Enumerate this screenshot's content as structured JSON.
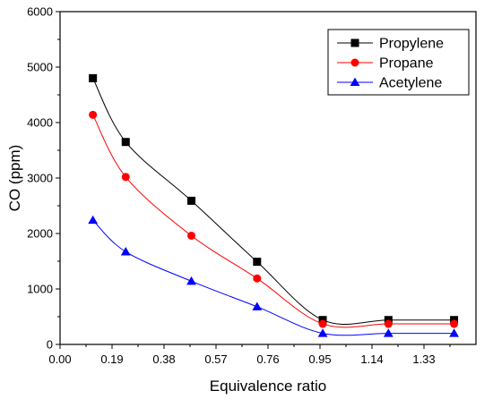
{
  "chart_data": {
    "type": "line",
    "title": "",
    "xlabel": "Equivalence ratio",
    "ylabel": "CO (ppm)",
    "xlim": [
      0.0,
      1.52
    ],
    "ylim": [
      0,
      6000
    ],
    "xticks": [
      0.0,
      0.19,
      0.38,
      0.57,
      0.76,
      0.95,
      1.14,
      1.33
    ],
    "xtick_labels": [
      "0.00",
      "0.19",
      "0.38",
      "0.57",
      "0.76",
      "0.95",
      "1.14",
      "1.33"
    ],
    "yticks": [
      0,
      1000,
      2000,
      3000,
      4000,
      5000,
      6000
    ],
    "ytick_labels": [
      "0",
      "1000",
      "2000",
      "3000",
      "4000",
      "5000",
      "6000"
    ],
    "grid": false,
    "legend_position": "top-right",
    "x": [
      0.12,
      0.24,
      0.48,
      0.72,
      0.96,
      1.2,
      1.44
    ],
    "series": [
      {
        "name": "Propylene",
        "color": "#000000",
        "marker": "square",
        "values": [
          4800,
          3650,
          2590,
          1490,
          440,
          440,
          440
        ]
      },
      {
        "name": "Propane",
        "color": "#ff0000",
        "marker": "circle",
        "values": [
          4140,
          3020,
          1960,
          1190,
          370,
          370,
          370
        ]
      },
      {
        "name": "Acetylene",
        "color": "#0000ff",
        "marker": "triangle",
        "values": [
          2240,
          1670,
          1140,
          680,
          200,
          200,
          200
        ]
      }
    ]
  }
}
